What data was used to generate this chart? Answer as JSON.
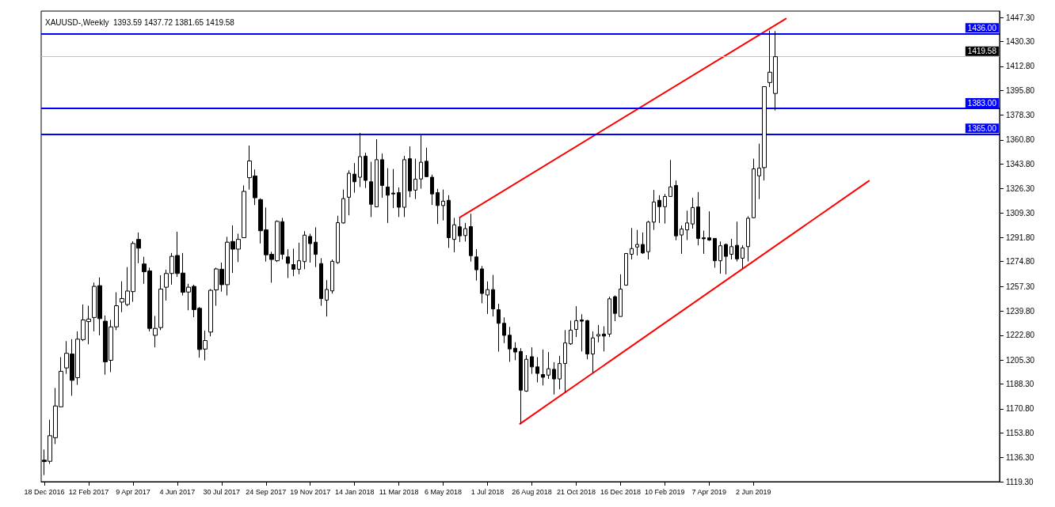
{
  "chart_data": {
    "type": "candlestick",
    "title": "XAUUSD-,Weekly",
    "subtitle": "1393.59 1437.72 1381.65 1419.58",
    "xlim": [
      "2016-12-14",
      "2020-04-08"
    ],
    "xticks": [
      {
        "value": "2016-12-18",
        "label": "18 Dec 2016"
      },
      {
        "value": "2017-02-12",
        "label": "12 Feb 2017"
      },
      {
        "value": "2017-04-09",
        "label": "9 Apr 2017"
      },
      {
        "value": "2017-06-04",
        "label": "4 Jun 2017"
      },
      {
        "value": "2017-07-30",
        "label": "30 Jul 2017"
      },
      {
        "value": "2017-09-24",
        "label": "24 Sep 2017"
      },
      {
        "value": "2017-11-19",
        "label": "19 Nov 2017"
      },
      {
        "value": "2018-01-14",
        "label": "14 Jan 2018"
      },
      {
        "value": "2018-03-11",
        "label": "11 Mar 2018"
      },
      {
        "value": "2018-05-06",
        "label": "6 May 2018"
      },
      {
        "value": "2018-07-01",
        "label": "1 Jul 2018"
      },
      {
        "value": "2018-08-26",
        "label": "26 Aug 2018"
      },
      {
        "value": "2018-10-21",
        "label": "21 Oct 2018"
      },
      {
        "value": "2018-12-16",
        "label": "16 Dec 2018"
      },
      {
        "value": "2019-02-10",
        "label": "10 Feb 2019"
      },
      {
        "value": "2019-04-07",
        "label": "7 Apr 2019"
      },
      {
        "value": "2019-06-02",
        "label": "2 Jun 2019"
      }
    ],
    "ylim": [
      1119.3,
      1451.8
    ],
    "yticks": [
      {
        "value": 1447.3,
        "label": "1447.30"
      },
      {
        "value": 1430.3,
        "label": "1430.30"
      },
      {
        "value": 1412.8,
        "label": "1412.80"
      },
      {
        "value": 1395.8,
        "label": "1395.80"
      },
      {
        "value": 1378.3,
        "label": "1378.30"
      },
      {
        "value": 1360.8,
        "label": "1360.80"
      },
      {
        "value": 1343.8,
        "label": "1343.80"
      },
      {
        "value": 1326.3,
        "label": "1326.30"
      },
      {
        "value": 1309.3,
        "label": "1309.30"
      },
      {
        "value": 1291.8,
        "label": "1291.80"
      },
      {
        "value": 1274.8,
        "label": "1274.80"
      },
      {
        "value": 1257.3,
        "label": "1257.30"
      },
      {
        "value": 1239.8,
        "label": "1239.80"
      },
      {
        "value": 1222.8,
        "label": "1222.80"
      },
      {
        "value": 1205.3,
        "label": "1205.30"
      },
      {
        "value": 1188.3,
        "label": "1188.30"
      },
      {
        "value": 1170.8,
        "label": "1170.80"
      },
      {
        "value": 1153.8,
        "label": "1153.80"
      },
      {
        "value": 1136.3,
        "label": "1136.30"
      },
      {
        "value": 1119.3,
        "label": "1119.30"
      }
    ],
    "ref_lines": [
      {
        "axis": "y",
        "value": 1436,
        "label": "1436.00",
        "color": "#0000ff"
      },
      {
        "axis": "y",
        "value": 1383,
        "label": "1383.00",
        "color": "#0000ff"
      },
      {
        "axis": "y",
        "value": 1365,
        "label": "1365.00",
        "color": "#0000ff"
      },
      {
        "axis": "y",
        "value": 1419.58,
        "label": "1419.58",
        "color": "#c0c0c0"
      }
    ],
    "series": [
      {
        "type": "candlestick",
        "color": "#000000",
        "x": [
          "2016-12-18",
          "2016-12-25",
          "2017-01-01",
          "2017-01-08",
          "2017-01-15",
          "2017-01-22",
          "2017-01-29",
          "2017-02-05",
          "2017-02-12",
          "2017-02-19",
          "2017-02-26",
          "2017-03-05",
          "2017-03-12",
          "2017-03-19",
          "2017-03-26",
          "2017-04-02",
          "2017-04-09",
          "2017-04-16",
          "2017-04-23",
          "2017-04-30",
          "2017-05-07",
          "2017-05-14",
          "2017-05-21",
          "2017-05-28",
          "2017-06-04",
          "2017-06-11",
          "2017-06-18",
          "2017-06-25",
          "2017-07-02",
          "2017-07-09",
          "2017-07-16",
          "2017-07-23",
          "2017-07-30",
          "2017-08-06",
          "2017-08-13",
          "2017-08-20",
          "2017-08-27",
          "2017-09-03",
          "2017-09-10",
          "2017-09-17",
          "2017-09-24",
          "2017-10-01",
          "2017-10-08",
          "2017-10-15",
          "2017-10-22",
          "2017-10-29",
          "2017-11-05",
          "2017-11-12",
          "2017-11-19",
          "2017-11-26",
          "2017-12-03",
          "2017-12-10",
          "2017-12-17",
          "2017-12-24",
          "2017-12-31",
          "2018-01-07",
          "2018-01-14",
          "2018-01-21",
          "2018-01-28",
          "2018-02-04",
          "2018-02-11",
          "2018-02-18",
          "2018-02-25",
          "2018-03-04",
          "2018-03-11",
          "2018-03-18",
          "2018-03-25",
          "2018-04-01",
          "2018-04-08",
          "2018-04-15",
          "2018-04-22",
          "2018-04-29",
          "2018-05-06",
          "2018-05-13",
          "2018-05-20",
          "2018-05-27",
          "2018-06-03",
          "2018-06-10",
          "2018-06-17",
          "2018-06-24",
          "2018-07-01",
          "2018-07-08",
          "2018-07-15",
          "2018-07-22",
          "2018-07-29",
          "2018-08-05",
          "2018-08-12",
          "2018-08-19",
          "2018-08-26",
          "2018-09-02",
          "2018-09-09",
          "2018-09-16",
          "2018-09-23",
          "2018-09-30",
          "2018-10-07",
          "2018-10-14",
          "2018-10-21",
          "2018-10-28",
          "2018-11-04",
          "2018-11-11",
          "2018-11-18",
          "2018-11-25",
          "2018-12-02",
          "2018-12-09",
          "2018-12-16",
          "2018-12-23",
          "2018-12-30",
          "2019-01-06",
          "2019-01-13",
          "2019-01-20",
          "2019-01-27",
          "2019-02-03",
          "2019-02-10",
          "2019-02-17",
          "2019-02-24",
          "2019-03-03",
          "2019-03-10",
          "2019-03-17",
          "2019-03-24",
          "2019-03-31",
          "2019-04-07",
          "2019-04-14",
          "2019-04-21",
          "2019-04-28",
          "2019-05-05",
          "2019-05-12",
          "2019-05-19",
          "2019-05-26",
          "2019-06-02",
          "2019-06-09",
          "2019-06-16",
          "2019-06-23",
          "2019-06-30"
        ],
        "ohlc": [
          [
            1134.5,
            1142,
            1124,
            1133.5
          ],
          [
            1133.7,
            1163.1,
            1131.9,
            1151.8
          ],
          [
            1150.4,
            1185.5,
            1145.9,
            1172.8
          ],
          [
            1172.2,
            1207.3,
            1171.9,
            1197.3
          ],
          [
            1199.7,
            1218.6,
            1195.5,
            1210.0
          ],
          [
            1209.5,
            1220.0,
            1180.0,
            1190.9
          ],
          [
            1192.8,
            1225.5,
            1187.7,
            1220.0
          ],
          [
            1219.7,
            1244.5,
            1218.6,
            1233.6
          ],
          [
            1232.4,
            1243.6,
            1216.4,
            1234.2
          ],
          [
            1235.3,
            1260.0,
            1225.5,
            1257.3
          ],
          [
            1257.8,
            1263.6,
            1222.7,
            1234.5
          ],
          [
            1232.7,
            1236.7,
            1194.9,
            1204.0
          ],
          [
            1205.1,
            1233.6,
            1196.7,
            1228.7
          ],
          [
            1228.7,
            1253.1,
            1226.4,
            1243.6
          ],
          [
            1246.2,
            1260.9,
            1239.1,
            1248.7
          ],
          [
            1244.5,
            1270.9,
            1243.3,
            1254.0
          ],
          [
            1253.6,
            1289.1,
            1246.4,
            1287.6
          ],
          [
            1290.5,
            1295.4,
            1273.6,
            1284.3
          ],
          [
            1273.1,
            1278.2,
            1259.1,
            1267.6
          ],
          [
            1268.2,
            1270.5,
            1225.5,
            1227.6
          ],
          [
            1222.7,
            1236.4,
            1214.2,
            1227.6
          ],
          [
            1228.2,
            1265.1,
            1226.4,
            1255.4
          ],
          [
            1256.7,
            1269.1,
            1247.3,
            1266.4
          ],
          [
            1266.4,
            1280.9,
            1258.5,
            1278.5
          ],
          [
            1279.1,
            1295.9,
            1264.0,
            1266.4
          ],
          [
            1266.7,
            1280.9,
            1250.9,
            1253.1
          ],
          [
            1253.3,
            1259.1,
            1240.4,
            1256.7
          ],
          [
            1257.3,
            1258.5,
            1235.5,
            1240.9
          ],
          [
            1241.8,
            1242.7,
            1206.9,
            1212.7
          ],
          [
            1213,
            1226,
            1205,
            1219
          ],
          [
            1225,
            1255.4,
            1222,
            1254.5
          ],
          [
            1254.8,
            1270.5,
            1243.6,
            1269.6
          ],
          [
            1269.4,
            1274.1,
            1253.6,
            1258.5
          ],
          [
            1258.5,
            1292.3,
            1250.9,
            1288.5
          ],
          [
            1289.0,
            1300.4,
            1266.8,
            1283.6
          ],
          [
            1283.6,
            1294.5,
            1274.5,
            1290.5
          ],
          [
            1291.7,
            1328.6,
            1291.7,
            1324.4
          ],
          [
            1334.1,
            1356.8,
            1325.7,
            1345.9
          ],
          [
            1335.3,
            1339.9,
            1314.8,
            1319.9
          ],
          [
            1318.6,
            1319.5,
            1287.6,
            1296.6
          ],
          [
            1297.2,
            1313.0,
            1274.8,
            1279.6
          ],
          [
            1279.9,
            1281.7,
            1259.9,
            1276.3
          ],
          [
            1275.4,
            1303.9,
            1274.5,
            1303.2
          ],
          [
            1303.0,
            1305.7,
            1276.3,
            1279.9
          ],
          [
            1278.1,
            1283.6,
            1263.2,
            1273.6
          ],
          [
            1272.7,
            1283.9,
            1264.5,
            1269.4
          ],
          [
            1269.4,
            1288.1,
            1265.8,
            1275.4
          ],
          [
            1274.8,
            1296.3,
            1269.4,
            1293.5
          ],
          [
            1292.6,
            1294.5,
            1274.1,
            1287.5
          ],
          [
            1288.5,
            1299.0,
            1270.9,
            1279.9
          ],
          [
            1273.4,
            1277.2,
            1243.6,
            1248.7
          ],
          [
            1247.6,
            1261.7,
            1236.0,
            1255.1
          ],
          [
            1254.1,
            1276.3,
            1252.3,
            1275.0
          ],
          [
            1274.1,
            1307.2,
            1273.2,
            1302.3
          ],
          [
            1302.1,
            1325.7,
            1301.7,
            1319.3
          ],
          [
            1320.3,
            1339.3,
            1307.5,
            1337.2
          ],
          [
            1336.6,
            1344.4,
            1323.5,
            1331.2
          ],
          [
            1334.4,
            1365.7,
            1327.5,
            1349.0
          ],
          [
            1349.3,
            1351.7,
            1326.8,
            1332.2
          ],
          [
            1331.2,
            1345.3,
            1306.3,
            1315.3
          ],
          [
            1313.5,
            1361.3,
            1313.5,
            1346.8
          ],
          [
            1346.8,
            1351.1,
            1319.9,
            1328.6
          ],
          [
            1327.5,
            1340.8,
            1302.1,
            1321.7
          ],
          [
            1323.2,
            1340.2,
            1312.6,
            1322.6
          ],
          [
            1323.5,
            1327.2,
            1306.3,
            1313.2
          ],
          [
            1313.2,
            1349.5,
            1306.3,
            1346.8
          ],
          [
            1347.5,
            1356.2,
            1320.3,
            1324.8
          ],
          [
            1325.3,
            1347.5,
            1319.0,
            1333.0
          ],
          [
            1333.2,
            1364.4,
            1326.3,
            1345.0
          ],
          [
            1345.7,
            1355.3,
            1334.4,
            1334.8
          ],
          [
            1334.4,
            1336.2,
            1314.8,
            1322.6
          ],
          [
            1323.5,
            1326.2,
            1301.4,
            1314.4
          ],
          [
            1314.4,
            1325.7,
            1303.9,
            1317.5
          ],
          [
            1318.1,
            1321.7,
            1284.5,
            1291.7
          ],
          [
            1290.5,
            1305.7,
            1281.4,
            1300.8
          ],
          [
            1299.4,
            1306,
            1288.6,
            1293.0
          ],
          [
            1293.2,
            1302.1,
            1289.0,
            1298.1
          ],
          [
            1299.5,
            1308.6,
            1274.8,
            1279.0
          ],
          [
            1278.1,
            1283.6,
            1261.4,
            1269.0
          ],
          [
            1269.6,
            1271.7,
            1245.4,
            1252.3
          ],
          [
            1251.2,
            1260.8,
            1237.8,
            1255.0
          ],
          [
            1255.0,
            1265.4,
            1236.0,
            1241.4
          ],
          [
            1240.8,
            1245.0,
            1211.2,
            1231.2
          ],
          [
            1231.2,
            1235.4,
            1217.2,
            1222.7
          ],
          [
            1222.8,
            1228.7,
            1204.0,
            1213.1
          ],
          [
            1213.6,
            1217.8,
            1205.1,
            1210.9
          ],
          [
            1211.3,
            1213.6,
            1160.0,
            1184.0
          ],
          [
            1183.3,
            1208.7,
            1182.8,
            1205.8
          ],
          [
            1207.6,
            1214.2,
            1195.5,
            1200.4
          ],
          [
            1200.4,
            1207.3,
            1189.5,
            1195.8
          ],
          [
            1195.0,
            1212.7,
            1187.3,
            1193.1
          ],
          [
            1194.6,
            1210.9,
            1191.9,
            1199.1
          ],
          [
            1198.7,
            1203.7,
            1180.9,
            1191.9
          ],
          [
            1191.9,
            1208.2,
            1184.6,
            1202.8
          ],
          [
            1202.8,
            1226.4,
            1182.2,
            1217.3
          ],
          [
            1216.7,
            1233.1,
            1216.0,
            1226.4
          ],
          [
            1226.9,
            1243.3,
            1221.5,
            1233.1
          ],
          [
            1233.6,
            1237.6,
            1211.3,
            1232.7
          ],
          [
            1233.1,
            1233.6,
            1205.8,
            1209.5
          ],
          [
            1209.5,
            1225.5,
            1196.4,
            1220.9
          ],
          [
            1222.2,
            1230.0,
            1217.8,
            1223.3
          ],
          [
            1223.6,
            1229.1,
            1211.3,
            1222.2
          ],
          [
            1223.6,
            1250.0,
            1221.5,
            1248.5
          ],
          [
            1250.0,
            1250.9,
            1232.7,
            1238.2
          ],
          [
            1236.0,
            1265.8,
            1236.0,
            1255.4
          ],
          [
            1258.2,
            1280.9,
            1257.8,
            1280.5
          ],
          [
            1280.0,
            1298.5,
            1276.3,
            1284.0
          ],
          [
            1285.1,
            1297.2,
            1279.1,
            1286.9
          ],
          [
            1286.9,
            1295.4,
            1280.3,
            1280.9
          ],
          [
            1281.8,
            1303.6,
            1276.3,
            1302.7
          ],
          [
            1302.7,
            1325.4,
            1297.2,
            1316.9
          ],
          [
            1318.1,
            1321.7,
            1302.1,
            1313.6
          ],
          [
            1313.6,
            1322.6,
            1301.7,
            1320.8
          ],
          [
            1320.8,
            1346.6,
            1320.8,
            1327.6
          ],
          [
            1328.6,
            1332.1,
            1289.9,
            1293.0
          ],
          [
            1293.6,
            1300.3,
            1280.3,
            1297.8
          ],
          [
            1297.2,
            1310.8,
            1290.0,
            1302.1
          ],
          [
            1301.4,
            1319.9,
            1298.1,
            1313.0
          ],
          [
            1313.4,
            1323.9,
            1286.3,
            1291.2
          ],
          [
            1291.6,
            1296.7,
            1280.3,
            1290.9
          ],
          [
            1291.6,
            1310.3,
            1289.4,
            1290.0
          ],
          [
            1291.2,
            1291.2,
            1270.5,
            1275.4
          ],
          [
            1275.4,
            1289.0,
            1266.3,
            1286.0
          ],
          [
            1286.9,
            1287.6,
            1265.8,
            1278.5
          ],
          [
            1280.0,
            1290.9,
            1276.3,
            1285.4
          ],
          [
            1286.3,
            1303.0,
            1274.9,
            1276.7
          ],
          [
            1277.2,
            1286.3,
            1270.0,
            1284.5
          ],
          [
            1285.4,
            1306.8,
            1274.9,
            1305.4
          ],
          [
            1305.8,
            1347.5,
            1305.4,
            1340.3
          ],
          [
            1335.4,
            1358.1,
            1319.0,
            1340.8
          ],
          [
            1341.2,
            1398.4,
            1332.1,
            1398.4
          ],
          [
            1401.3,
            1438.0,
            1398.1,
            1408.6
          ],
          [
            1393.59,
            1437.72,
            1381.65,
            1419.58
          ]
        ]
      },
      {
        "type": "line",
        "color": "#ff0000",
        "x": [
          "2018-05-27",
          "2019-07-13"
        ],
        "values": [
          1306,
          1446.4
        ]
      },
      {
        "type": "line",
        "color": "#ff0000",
        "x": [
          "2018-08-11",
          "2019-10-26"
        ],
        "values": [
          1160.2,
          1331.9
        ]
      }
    ]
  }
}
